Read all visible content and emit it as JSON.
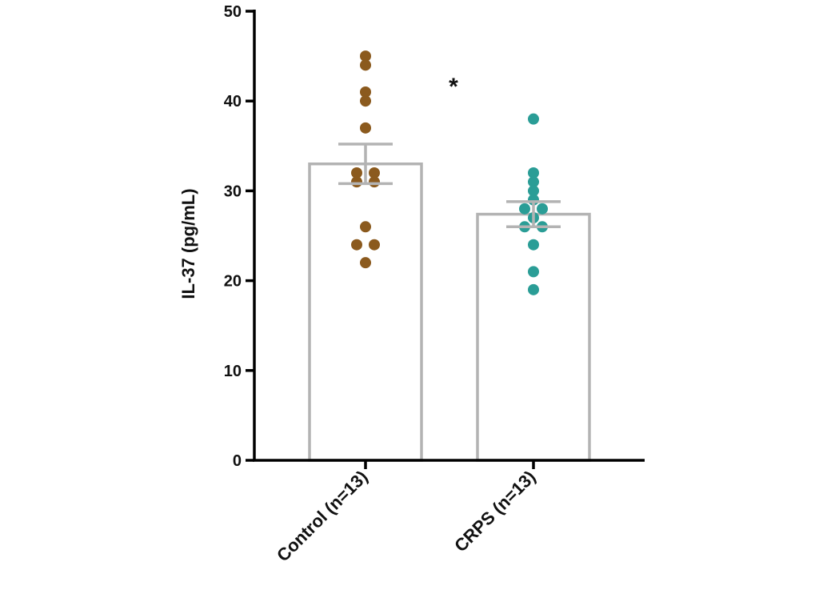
{
  "chart_data": {
    "type": "bar",
    "title": "",
    "xlabel": "",
    "ylabel": "IL-37 (pg/mL)",
    "ylim": [
      0,
      50
    ],
    "y_ticks": [
      0,
      10,
      20,
      30,
      40,
      50
    ],
    "categories": [
      "Control (n=13)",
      "CRPS (n=13)"
    ],
    "values": [
      33.0,
      27.4
    ],
    "error_sem": [
      2.2,
      1.4
    ],
    "significance": "*",
    "grid": false,
    "legend": "none",
    "bar_fill": "#ffffff",
    "bar_stroke": "#b3b3b3",
    "point_colors": [
      "#8b5a1e",
      "#2a9d96"
    ],
    "points": [
      [
        45,
        44,
        41,
        40,
        37,
        32,
        32,
        31,
        31,
        26,
        24,
        24,
        22
      ],
      [
        38,
        32,
        31,
        30,
        29,
        28,
        28,
        27,
        26,
        26,
        24,
        21,
        19
      ]
    ]
  }
}
